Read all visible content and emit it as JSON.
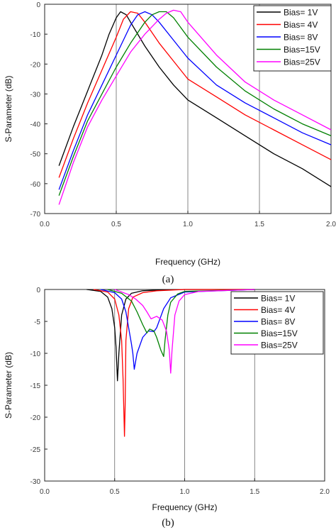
{
  "captions": [
    "(a)",
    "(b)"
  ],
  "chart_data": [
    {
      "type": "line",
      "title": "",
      "xlabel": "Frequency (GHz)",
      "ylabel": "S-Parameter (dB)",
      "xlim": [
        0.0,
        2.0
      ],
      "ylim": [
        -70,
        0
      ],
      "xticks": [
        "0.0",
        "0.5",
        "1.0",
        "1.5",
        "2.0"
      ],
      "yticks": [
        "0",
        "-10",
        "-20",
        "-30",
        "-40",
        "-50",
        "-60",
        "-70"
      ],
      "legend_position": "top-right",
      "grid": "vertical lines at 0.5, 1.0, 1.5",
      "series": [
        {
          "name": "Bias= 1V",
          "color": "#000000",
          "x": [
            0.1,
            0.2,
            0.3,
            0.4,
            0.45,
            0.5,
            0.53,
            0.57,
            0.6,
            0.7,
            0.8,
            0.9,
            1.0,
            1.2,
            1.4,
            1.6,
            1.8,
            2.0
          ],
          "y": [
            -54,
            -41,
            -29,
            -17,
            -10,
            -4.5,
            -2.5,
            -3.5,
            -6,
            -14,
            -21,
            -27,
            -32,
            -38,
            -44,
            -50,
            -55,
            -61
          ]
        },
        {
          "name": "Bias= 4V",
          "color": "#ff0000",
          "x": [
            0.1,
            0.2,
            0.3,
            0.4,
            0.5,
            0.55,
            0.6,
            0.65,
            0.7,
            0.8,
            0.9,
            1.0,
            1.2,
            1.4,
            1.6,
            1.8,
            2.0
          ],
          "y": [
            -58,
            -45,
            -33,
            -22,
            -11,
            -5,
            -2.5,
            -3,
            -6,
            -13,
            -19,
            -25,
            -31,
            -37,
            -42,
            -47,
            -52
          ]
        },
        {
          "name": "Bias= 8V",
          "color": "#0000ff",
          "x": [
            0.1,
            0.2,
            0.3,
            0.4,
            0.5,
            0.6,
            0.65,
            0.7,
            0.75,
            0.8,
            0.9,
            1.0,
            1.2,
            1.4,
            1.6,
            1.8,
            2.0
          ],
          "y": [
            -62,
            -49,
            -37,
            -27,
            -17,
            -7,
            -3.5,
            -2.5,
            -3.5,
            -6,
            -12,
            -18,
            -27,
            -33,
            -38,
            -43,
            -47
          ]
        },
        {
          "name": "Bias=15V",
          "color": "#008000",
          "x": [
            0.1,
            0.2,
            0.3,
            0.4,
            0.5,
            0.6,
            0.7,
            0.75,
            0.8,
            0.85,
            0.9,
            1.0,
            1.2,
            1.4,
            1.6,
            1.8,
            2.0
          ],
          "y": [
            -64,
            -51,
            -39,
            -30,
            -21,
            -13,
            -6,
            -3.5,
            -2.5,
            -2.5,
            -4.5,
            -11,
            -21,
            -29,
            -35,
            -40,
            -44
          ]
        },
        {
          "name": "Bias=25V",
          "color": "#ff00ff",
          "x": [
            0.1,
            0.2,
            0.3,
            0.4,
            0.5,
            0.6,
            0.7,
            0.8,
            0.85,
            0.9,
            0.95,
            1.0,
            1.2,
            1.4,
            1.6,
            1.8,
            2.0
          ],
          "y": [
            -67,
            -53,
            -41,
            -32,
            -24,
            -16,
            -10,
            -5,
            -3,
            -2,
            -2.5,
            -6,
            -17,
            -26,
            -32,
            -37,
            -42
          ]
        }
      ]
    },
    {
      "type": "line",
      "title": "",
      "xlabel": "Frequency (GHz)",
      "ylabel": "S-Parameter (dB)",
      "xlim": [
        0.0,
        2.0
      ],
      "ylim": [
        -30,
        0
      ],
      "xticks": [
        "0.0",
        "0.5",
        "1.0",
        "1.5",
        "2.0"
      ],
      "yticks": [
        "0",
        "-5",
        "-10",
        "-15",
        "-20",
        "-25",
        "-30"
      ],
      "legend_position": "top-right",
      "grid": "vertical lines at 0.5, 1.0",
      "series": [
        {
          "name": "Bias= 1V",
          "color": "#000000",
          "x": [
            0.3,
            0.4,
            0.45,
            0.48,
            0.5,
            0.51,
            0.52,
            0.53,
            0.55,
            0.58,
            0.62,
            0.7,
            0.8,
            1.0,
            1.5
          ],
          "y": [
            0,
            -0.3,
            -1.2,
            -3,
            -6,
            -9,
            -14.3,
            -10,
            -4,
            -1.5,
            -0.6,
            -0.2,
            -0.1,
            0,
            0
          ]
        },
        {
          "name": "Bias= 4V",
          "color": "#ff0000",
          "x": [
            0.35,
            0.45,
            0.5,
            0.53,
            0.55,
            0.56,
            0.57,
            0.575,
            0.58,
            0.6,
            0.63,
            0.7,
            0.8,
            1.0,
            1.5
          ],
          "y": [
            0,
            -0.4,
            -1.5,
            -4,
            -8,
            -14,
            -23,
            -18,
            -8,
            -3,
            -1.2,
            -0.5,
            -0.2,
            0,
            0
          ]
        },
        {
          "name": "Bias= 8V",
          "color": "#0000ff",
          "x": [
            0.4,
            0.5,
            0.55,
            0.58,
            0.6,
            0.62,
            0.63,
            0.64,
            0.66,
            0.7,
            0.74,
            0.78,
            0.8,
            0.85,
            0.9,
            1.0,
            1.5
          ],
          "y": [
            0,
            -0.5,
            -1.5,
            -3.5,
            -6,
            -8.5,
            -10,
            -12.5,
            -10,
            -7.5,
            -6.5,
            -6.6,
            -6,
            -3,
            -1.3,
            -0.4,
            0
          ]
        },
        {
          "name": "Bias=15V",
          "color": "#008000",
          "x": [
            0.45,
            0.55,
            0.62,
            0.66,
            0.7,
            0.73,
            0.75,
            0.78,
            0.8,
            0.83,
            0.85,
            0.86,
            0.88,
            0.9,
            0.95,
            1.0,
            1.5
          ],
          "y": [
            0,
            -0.6,
            -1.8,
            -3.5,
            -5.5,
            -6.8,
            -6.2,
            -6.5,
            -7.5,
            -9.5,
            -10.5,
            -8,
            -4,
            -2,
            -0.7,
            -0.3,
            0
          ]
        },
        {
          "name": "Bias=25V",
          "color": "#ff00ff",
          "x": [
            0.5,
            0.6,
            0.65,
            0.7,
            0.73,
            0.76,
            0.8,
            0.84,
            0.87,
            0.89,
            0.9,
            0.91,
            0.93,
            0.96,
            1.0,
            1.1,
            1.5
          ],
          "y": [
            0,
            -0.8,
            -1.5,
            -2.5,
            -3.5,
            -4.6,
            -4.2,
            -4.8,
            -6.5,
            -9.5,
            -13.1,
            -9.5,
            -4,
            -1.8,
            -0.8,
            -0.3,
            0
          ]
        }
      ]
    }
  ]
}
